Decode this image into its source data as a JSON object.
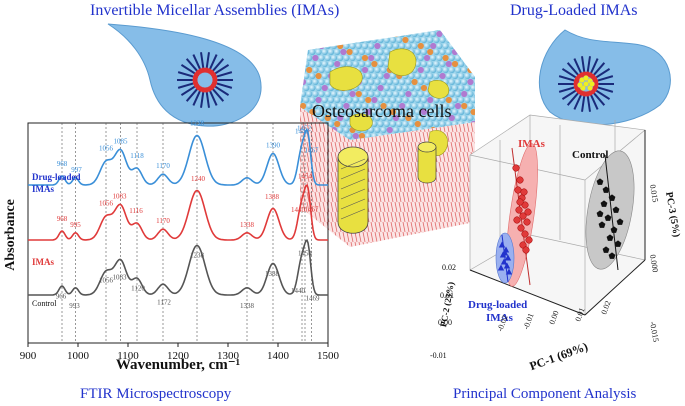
{
  "titles": {
    "top_left": "Invertible Micellar Assemblies (IMAs)",
    "top_right": "Drug-Loaded  IMAs",
    "bottom_left": "FTIR Microspectroscopy",
    "bottom_right": "Principal Component Analysis"
  },
  "cell_label": "Osteosarcoma cells",
  "colors": {
    "title_blue": "#2233cc",
    "drop_blue": "#86bde8",
    "series_blue": "#3a8fd8",
    "series_red": "#e03a3a",
    "series_gray": "#555555",
    "sphere": "#8fd0e8",
    "membrane": "#f4b0b0",
    "nucleus": "#e8e040"
  },
  "chart_data": [
    {
      "type": "line",
      "xlabel": "Wavenumber, cm⁻¹",
      "ylabel": "Absorbance",
      "xlim": [
        900,
        1500
      ],
      "x_ticks": [
        "900",
        "1000",
        "1100",
        "1200",
        "1300",
        "1400",
        "1500"
      ],
      "grid": "dotted vertical lines at peak positions",
      "series": [
        {
          "name": "Drug-loaded IMAs",
          "color": "#3a8fd8",
          "peak_labels": [
            "968",
            "997",
            "1056",
            "1085",
            "1118",
            "1170",
            "1238",
            "1390",
            "1448",
            "1452",
            "1467"
          ]
        },
        {
          "name": "IMAs",
          "color": "#e03a3a",
          "peak_labels": [
            "968",
            "995",
            "1056",
            "1083",
            "1116",
            "1170",
            "1240",
            "1338",
            "1388",
            "1440",
            "1454",
            "1467"
          ]
        },
        {
          "name": "Control",
          "color": "#555555",
          "peak_labels": [
            "966",
            "993",
            "1056",
            "1083",
            "1120",
            "1172",
            "1238",
            "1338",
            "1388",
            "1440",
            "1454",
            "1469"
          ]
        }
      ]
    },
    {
      "type": "scatter",
      "xlabel": "PC-1 (69%)",
      "ylabel": "PC-2 (23%)",
      "zlabel": "PC-3 (5%)",
      "x_ticks": [
        "-0.02",
        "-0.01",
        "0.00",
        "0.01",
        "0.02"
      ],
      "y_ticks": [
        "-0.01",
        "0.00",
        "0.01",
        "0.02"
      ],
      "z_ticks": [
        "-0.015",
        "0.000",
        "0.015"
      ],
      "series": [
        {
          "name": "IMAs",
          "color": "#e03a3a",
          "marker": "circle"
        },
        {
          "name": "Control",
          "color": "#111111",
          "marker": "pentagon"
        },
        {
          "name": "Drug-loaded IMAs",
          "color": "#2233cc",
          "marker": "triangle"
        }
      ]
    }
  ]
}
